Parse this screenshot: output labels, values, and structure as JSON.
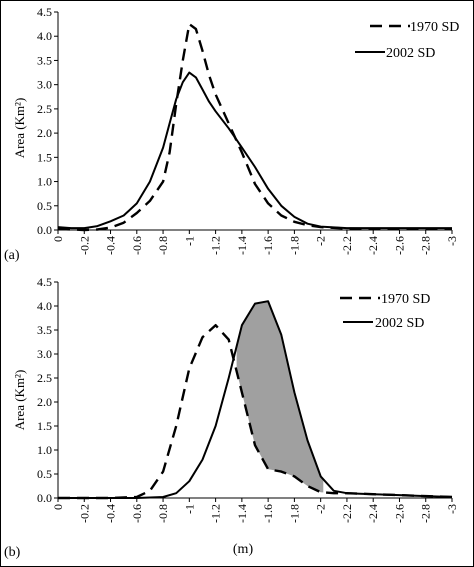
{
  "chart_data": [
    {
      "type": "line",
      "panel_label": "(a)",
      "ylabel": "Area (Km²)",
      "xlabel": "",
      "xlim": [
        0,
        -3
      ],
      "ylim": [
        0,
        4.5
      ],
      "x_ticks": [
        "0",
        "-0.2",
        "-0.4",
        "-0.6",
        "-0.8",
        "-1",
        "-1.2",
        "-1.4",
        "-1.6",
        "-1.8",
        "-2",
        "-2.2",
        "-2.4",
        "-2.6",
        "-2.8",
        "-3"
      ],
      "y_ticks": [
        "0.0",
        "0.5",
        "1.0",
        "1.5",
        "2.0",
        "2.5",
        "3.0",
        "3.5",
        "4.0",
        "4.5"
      ],
      "legend_position": "top-right",
      "series": [
        {
          "name": "1970 SD",
          "style": "dashed",
          "color": "#000000",
          "x": [
            0,
            -0.1,
            -0.2,
            -0.3,
            -0.4,
            -0.5,
            -0.6,
            -0.7,
            -0.8,
            -0.85,
            -0.9,
            -0.95,
            -1.0,
            -1.05,
            -1.1,
            -1.15,
            -1.2,
            -1.3,
            -1.4,
            -1.5,
            -1.6,
            -1.7,
            -1.8,
            -1.9,
            -2.0,
            -2.2,
            -2.5,
            -3.0
          ],
          "y": [
            0.02,
            0.01,
            0.0,
            0.01,
            0.05,
            0.15,
            0.35,
            0.6,
            1.0,
            1.6,
            2.6,
            3.5,
            4.25,
            4.15,
            3.7,
            3.2,
            2.8,
            2.2,
            1.6,
            0.95,
            0.55,
            0.3,
            0.17,
            0.1,
            0.06,
            0.03,
            0.02,
            0.02
          ]
        },
        {
          "name": "2002 SD",
          "style": "solid",
          "color": "#000000",
          "x": [
            0,
            -0.1,
            -0.2,
            -0.3,
            -0.4,
            -0.5,
            -0.6,
            -0.7,
            -0.8,
            -0.85,
            -0.9,
            -0.95,
            -1.0,
            -1.05,
            -1.1,
            -1.15,
            -1.2,
            -1.3,
            -1.4,
            -1.5,
            -1.6,
            -1.7,
            -1.8,
            -1.9,
            -2.0,
            -2.2,
            -2.5,
            -3.0
          ],
          "y": [
            0.06,
            0.04,
            0.04,
            0.08,
            0.18,
            0.3,
            0.55,
            1.0,
            1.7,
            2.2,
            2.7,
            3.05,
            3.25,
            3.15,
            2.9,
            2.65,
            2.45,
            2.1,
            1.7,
            1.3,
            0.85,
            0.5,
            0.27,
            0.13,
            0.07,
            0.04,
            0.04,
            0.04
          ]
        }
      ]
    },
    {
      "type": "line",
      "panel_label": "(b)",
      "ylabel": "Area (Km²)",
      "xlabel": "(m)",
      "xlim": [
        0,
        -3
      ],
      "ylim": [
        0,
        4.5
      ],
      "x_ticks": [
        "0",
        "-0.2",
        "-0.4",
        "-0.6",
        "-0.8",
        "-1",
        "-1.2",
        "-1.4",
        "-1.6",
        "-1.8",
        "-2",
        "-2.2",
        "-2.4",
        "-2.6",
        "-2.8",
        "-3"
      ],
      "y_ticks": [
        "0.0",
        "0.5",
        "1.0",
        "1.5",
        "2.0",
        "2.5",
        "3.0",
        "3.5",
        "4.0",
        "4.5"
      ],
      "legend_position": "top-right",
      "shaded_between_series": true,
      "series": [
        {
          "name": "1970 SD",
          "style": "dashed",
          "color": "#000000",
          "x": [
            0,
            -0.2,
            -0.4,
            -0.6,
            -0.7,
            -0.8,
            -0.9,
            -1.0,
            -1.1,
            -1.2,
            -1.3,
            -1.4,
            -1.5,
            -1.6,
            -1.7,
            -1.8,
            -1.9,
            -2.0,
            -2.1,
            -2.2,
            -2.4,
            -2.6,
            -2.8,
            -3.0
          ],
          "y": [
            0.0,
            0.0,
            0.0,
            0.02,
            0.15,
            0.55,
            1.5,
            2.7,
            3.35,
            3.6,
            3.3,
            2.2,
            1.1,
            0.6,
            0.55,
            0.45,
            0.25,
            0.12,
            0.1,
            0.1,
            0.08,
            0.06,
            0.04,
            0.02
          ]
        },
        {
          "name": "2002 SD",
          "style": "solid",
          "color": "#000000",
          "x": [
            0,
            -0.2,
            -0.4,
            -0.6,
            -0.8,
            -0.9,
            -1.0,
            -1.1,
            -1.2,
            -1.3,
            -1.4,
            -1.5,
            -1.6,
            -1.7,
            -1.8,
            -1.9,
            -2.0,
            -2.1,
            -2.2,
            -2.4,
            -2.6,
            -2.8,
            -3.0
          ],
          "y": [
            0.0,
            0.0,
            0.0,
            0.0,
            0.02,
            0.1,
            0.35,
            0.8,
            1.5,
            2.5,
            3.6,
            4.05,
            4.1,
            3.4,
            2.2,
            1.2,
            0.45,
            0.15,
            0.1,
            0.08,
            0.06,
            0.04,
            0.02
          ]
        }
      ]
    }
  ],
  "colors": {
    "shade": "#a0a0a0",
    "line": "#000000"
  }
}
